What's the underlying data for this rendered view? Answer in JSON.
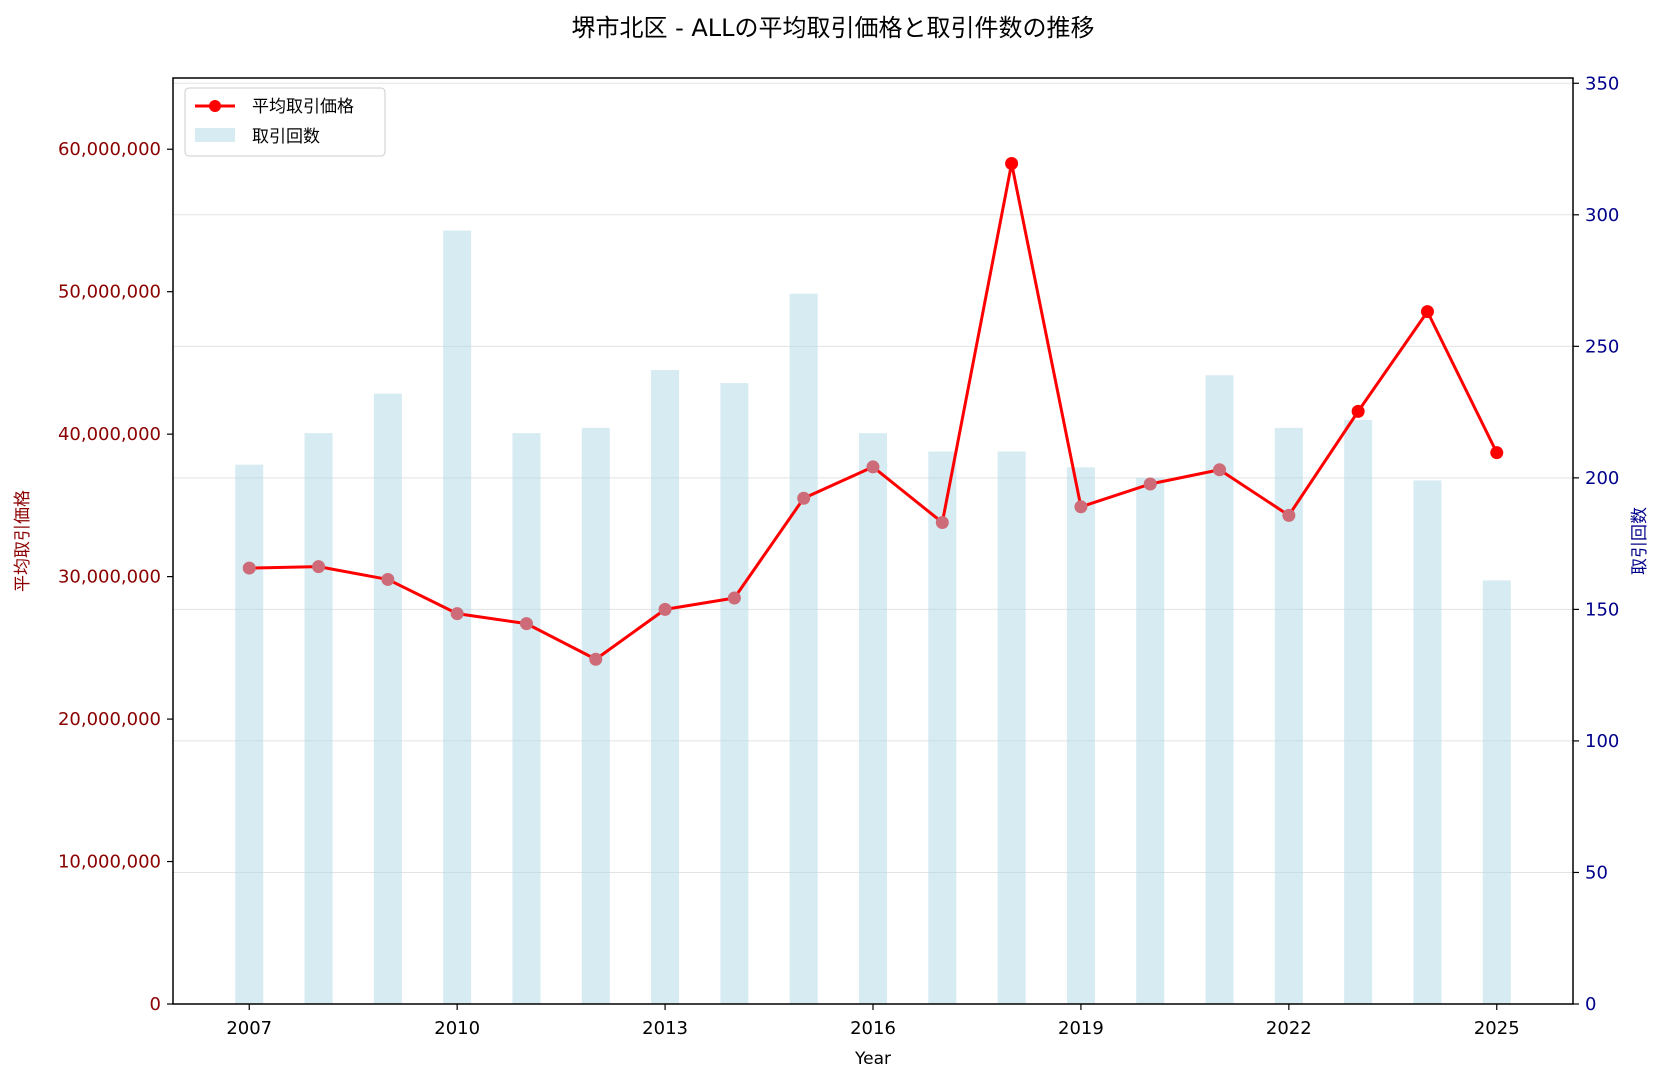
{
  "chart_data": {
    "type": "bar",
    "title": "堺市北区 - ALLの平均取引価格と取引件数の推移",
    "xlabel": "Year",
    "ylabel_left": "平均取引価格",
    "ylabel_right": "取引回数",
    "x": [
      2007,
      2008,
      2009,
      2010,
      2011,
      2012,
      2013,
      2014,
      2015,
      2016,
      2017,
      2018,
      2019,
      2020,
      2021,
      2022,
      2023,
      2024,
      2025
    ],
    "x_ticks": [
      "2007",
      "2010",
      "2013",
      "2016",
      "2019",
      "2022",
      "2025"
    ],
    "ylim_left": [
      0,
      65000000
    ],
    "ylim_right": [
      0,
      352
    ],
    "y_ticks_left": [
      "0",
      "10,000,000",
      "20,000,000",
      "30,000,000",
      "40,000,000",
      "50,000,000",
      "60,000,000"
    ],
    "y_ticks_right": [
      "0",
      "50",
      "100",
      "150",
      "200",
      "250",
      "300",
      "350"
    ],
    "grid": true,
    "legend_position": "top-left",
    "series": [
      {
        "name": "平均取引価格",
        "type": "line",
        "axis": "left",
        "color": "#ff0000",
        "values": [
          30600000,
          30700000,
          29800000,
          27400000,
          26700000,
          24200000,
          27700000,
          28500000,
          35500000,
          37700000,
          33800000,
          59000000,
          34900000,
          36500000,
          37500000,
          34300000,
          41600000,
          48600000,
          38700000
        ]
      },
      {
        "name": "取引回数",
        "type": "bar",
        "axis": "right",
        "color": "#add8e6",
        "values": [
          205,
          217,
          232,
          294,
          217,
          219,
          241,
          236,
          270,
          217,
          210,
          210,
          204,
          200,
          239,
          219,
          222,
          199,
          161
        ]
      }
    ]
  }
}
